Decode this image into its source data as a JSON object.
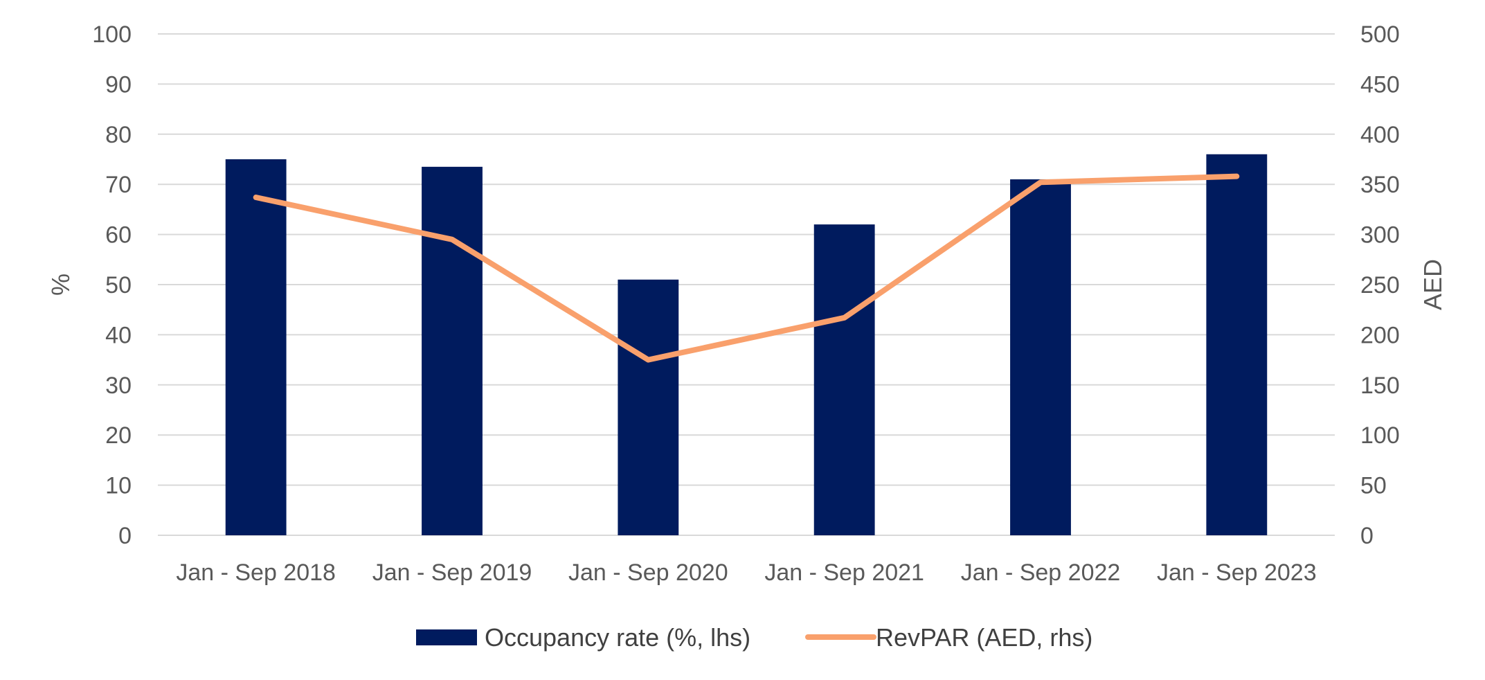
{
  "chart_data": {
    "type": "bar",
    "categories": [
      "Jan - Sep 2018",
      "Jan - Sep 2019",
      "Jan - Sep 2020",
      "Jan - Sep 2021",
      "Jan - Sep 2022",
      "Jan - Sep 2023"
    ],
    "series": [
      {
        "name": "Occupancy rate (%, lhs)",
        "type": "bar",
        "axis": "left",
        "color": "#001b5e",
        "values": [
          75,
          73.5,
          51,
          62,
          71,
          76
        ]
      },
      {
        "name": "RevPAR (AED, rhs)",
        "type": "line",
        "axis": "right",
        "color": "#f9a06c",
        "values": [
          337,
          295,
          175,
          217,
          352,
          358
        ]
      }
    ],
    "y_left": {
      "label": "%",
      "range": [
        0,
        100
      ],
      "ticks": [
        0,
        10,
        20,
        30,
        40,
        50,
        60,
        70,
        80,
        90,
        100
      ]
    },
    "y_right": {
      "label": "AED",
      "range": [
        0,
        500
      ],
      "ticks": [
        0,
        50,
        100,
        150,
        200,
        250,
        300,
        350,
        400,
        450,
        500
      ]
    },
    "grid": true,
    "legend_position": "bottom"
  }
}
